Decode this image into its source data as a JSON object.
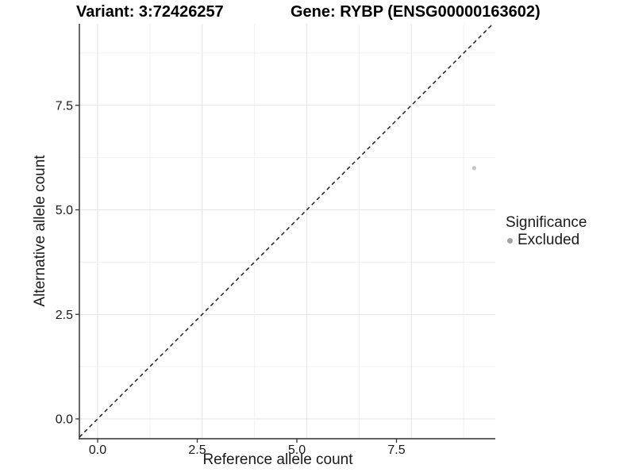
{
  "chart_data": {
    "type": "scatter",
    "title_variant": "Variant: 3:72426257",
    "title_gene": "Gene: RYBP (ENSG00000163602)",
    "xlabel": "Reference allele count",
    "ylabel": "Alternative allele count",
    "x_tick_values": [
      0,
      2.5,
      5,
      7.5
    ],
    "x_tick_labels": [
      "0.0",
      "2.5",
      "5.0",
      "7.5"
    ],
    "y_tick_values": [
      0,
      2.5,
      5,
      7.5
    ],
    "y_tick_labels": [
      "0.0",
      "2.5",
      "5.0",
      "7.5"
    ],
    "xlim": [
      -0.46,
      9.51
    ],
    "ylim": [
      -0.47,
      9.45
    ],
    "grid": {
      "on": true,
      "major_step": 2.5,
      "minor_step": 1.25
    },
    "points": [
      {
        "x": 9,
        "y": 6,
        "series": "Excluded"
      }
    ],
    "identity_line": {
      "slope": 1,
      "intercept": 0,
      "style": "dashed"
    },
    "legend": {
      "title": "Significance",
      "position": "right",
      "items": [
        {
          "label": "Excluded",
          "color": "#a2a2a2"
        }
      ]
    }
  },
  "colors": {
    "background": "#ffffff",
    "point": "#c4c4c4",
    "legend_key": "#a2a2a2",
    "grid_major": "#e4e4e4",
    "grid_minor": "#f0f0f0",
    "axis_line": "#4d4d4d",
    "tick_mark": "#333333",
    "tick_text": "#1a1a1a",
    "title_text": "#000000",
    "identity_line": "#111111"
  }
}
